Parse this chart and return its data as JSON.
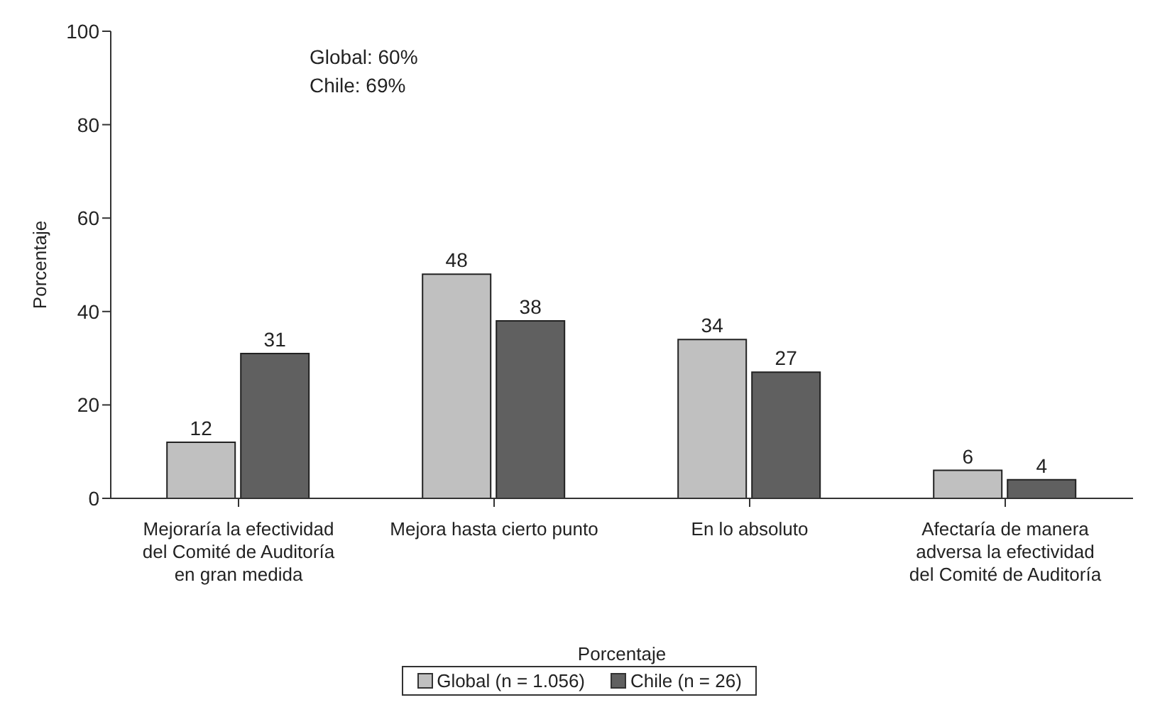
{
  "chart_data": {
    "type": "bar",
    "ylabel": "Porcentaje",
    "xlabel": "Porcentaje",
    "categories": [
      "Mejoraría la efectividad del Comité de Auditoría en gran medida",
      "Mejora hasta cierto punto",
      "En lo absoluto",
      "Afectaría de manera adversa la efectividad del Comité de Auditoría"
    ],
    "series": [
      {
        "name": "Global (n = 1.056)",
        "color": "#c0c0c0",
        "values": [
          12,
          48,
          34,
          6
        ]
      },
      {
        "name": "Chile (n = 26)",
        "color": "#606060",
        "values": [
          31,
          38,
          27,
          4
        ]
      }
    ],
    "ylim": [
      0,
      100
    ],
    "yticks": [
      0,
      20,
      40,
      60,
      80,
      100
    ],
    "grid": false,
    "legend": "bottom",
    "data_labels": true,
    "annotations": [
      "Global: 60%",
      "Chile: 69%"
    ]
  }
}
